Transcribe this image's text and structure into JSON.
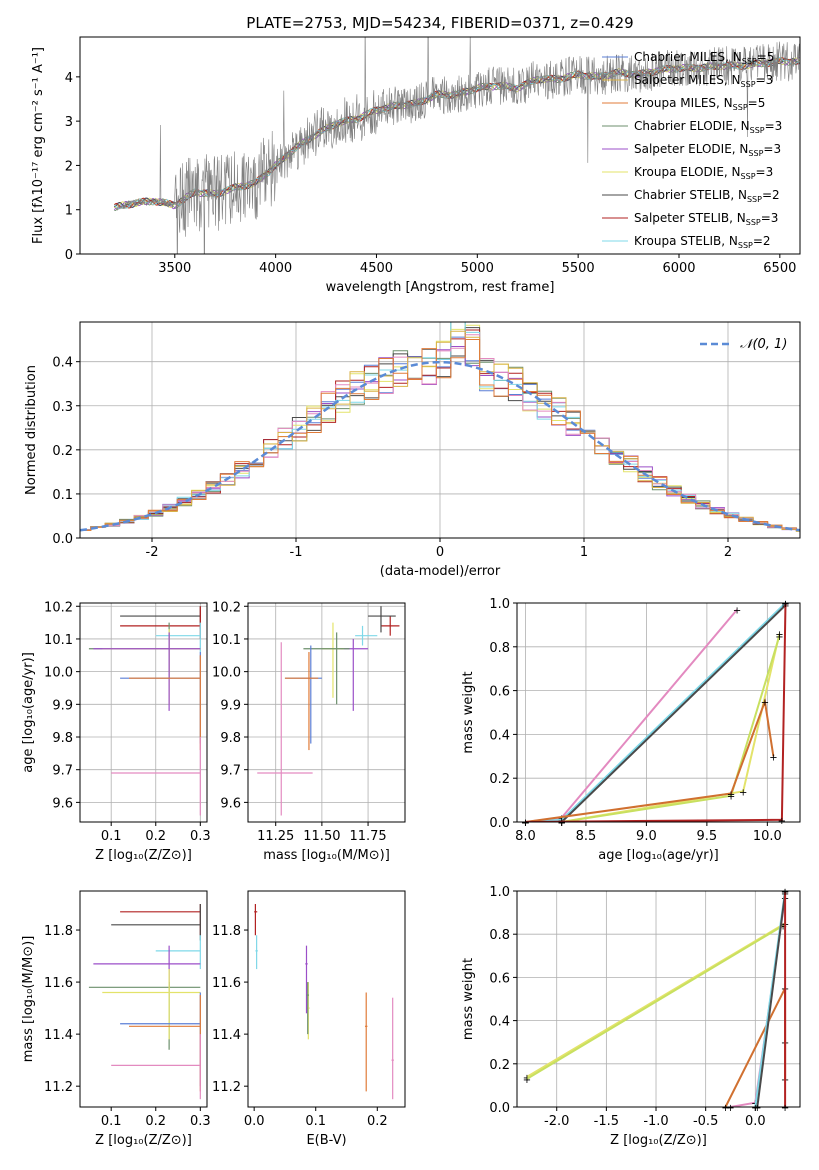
{
  "figure_title": "PLATE=2753, MJD=54234, FIBERID=0371, z=0.429",
  "colors": {
    "c0": "#5b7fd6",
    "c1": "#d9b247",
    "c2": "#e07b39",
    "c3": "#6c8f6c",
    "c4": "#9b4fc8",
    "c5": "#e3e36a",
    "c6": "#4a4a4a",
    "c7": "#b22222",
    "c8": "#7fd8e8",
    "c9": "#e38ac0",
    "c10": "#c8e060",
    "c11": "#d07030"
  },
  "chart_data": [
    {
      "id": "spectrum",
      "type": "line",
      "xlabel": "wavelength [Angstrom, rest frame]",
      "ylabel": "Flux [fλ10⁻¹⁷ erg cm⁻² s⁻¹ A⁻¹]",
      "xlim": [
        3030,
        6600
      ],
      "ylim": [
        0,
        4.9
      ],
      "xticks": [
        3500,
        4000,
        4500,
        5000,
        5500,
        6000,
        6500
      ],
      "yticks": [
        0,
        1,
        2,
        3,
        4
      ],
      "grid": false,
      "legend": [
        {
          "label": "Chabrier MILES, N_SSP=5",
          "color": "#5b7fd6"
        },
        {
          "label": "Salpeter MILES, N_SSP=3",
          "color": "#d9b247"
        },
        {
          "label": "Kroupa MILES, N_SSP=5",
          "color": "#e07b39"
        },
        {
          "label": "Chabrier ELODIE, N_SSP=3",
          "color": "#6c8f6c"
        },
        {
          "label": "Salpeter ELODIE, N_SSP=3",
          "color": "#9b4fc8"
        },
        {
          "label": "Kroupa ELODIE, N_SSP=3",
          "color": "#e3e36a"
        },
        {
          "label": "Chabrier STELIB, N_SSP=2",
          "color": "#4a4a4a"
        },
        {
          "label": "Salpeter STELIB, N_SSP=3",
          "color": "#b22222"
        },
        {
          "label": "Kroupa STELIB, N_SSP=2",
          "color": "#7fd8e8"
        }
      ],
      "continuum": {
        "x": [
          3200,
          3300,
          3400,
          3500,
          3600,
          3700,
          3800,
          3900,
          4000,
          4100,
          4200,
          4300,
          4400,
          4500,
          4600,
          4700,
          4800,
          4900,
          5000,
          5100,
          5200,
          5300,
          5400,
          5500,
          5600,
          5700,
          5800,
          5900,
          6000,
          6100,
          6200,
          6300,
          6400,
          6500,
          6600
        ],
        "y": [
          1.05,
          1.15,
          1.2,
          1.1,
          1.4,
          1.35,
          1.5,
          1.6,
          2.0,
          2.4,
          2.7,
          2.95,
          3.05,
          3.25,
          3.35,
          3.4,
          3.6,
          3.6,
          3.75,
          3.8,
          3.75,
          3.95,
          3.95,
          4.05,
          4.0,
          4.1,
          4.05,
          4.15,
          4.2,
          4.2,
          4.25,
          4.25,
          4.3,
          4.35,
          4.35
        ]
      }
    },
    {
      "id": "residuals",
      "type": "histogram",
      "xlabel": "(data-model)/error",
      "ylabel": "Normed distribution",
      "xlim": [
        -2.5,
        2.5
      ],
      "ylim": [
        0,
        0.49
      ],
      "xticks": [
        -2,
        -1,
        0,
        1,
        2
      ],
      "yticks": [
        0.0,
        0.1,
        0.2,
        0.3,
        0.4
      ],
      "grid": true,
      "legend": [
        {
          "label": "𝒩(0, 1)",
          "color": "#5b7fd6"
        }
      ],
      "legend_position": "top-right"
    },
    {
      "id": "age_vs_Z",
      "type": "scatter",
      "xlabel": "Z [log₁₀(Z/Z⊙)]",
      "ylabel": "age  [log₁₀(age/yr)]",
      "xlim": [
        0.03,
        0.315
      ],
      "ylim": [
        9.54,
        10.21
      ],
      "xticks": [
        0.1,
        0.2,
        0.3
      ],
      "yticks": [
        9.6,
        9.7,
        9.8,
        9.9,
        10.0,
        10.1,
        10.2
      ],
      "grid": true
    },
    {
      "id": "age_vs_mass",
      "type": "scatter",
      "xlabel": "mass [log₁₀(M/M⊙)]",
      "xlim": [
        11.1,
        11.95
      ],
      "ylim": [
        9.54,
        10.21
      ],
      "xticks": [
        11.25,
        11.5,
        11.75
      ],
      "yticks": [
        9.6,
        9.7,
        9.8,
        9.9,
        10.0,
        10.1,
        10.2
      ],
      "grid": true
    },
    {
      "id": "weight_vs_age",
      "type": "line",
      "xlabel": "age  [log₁₀(age/yr)]",
      "ylabel": "mass weight",
      "xlim": [
        7.93,
        10.27
      ],
      "ylim": [
        0,
        1.0
      ],
      "xticks": [
        8.0,
        8.5,
        9.0,
        9.5,
        10.0
      ],
      "yticks": [
        0.0,
        0.2,
        0.4,
        0.6,
        0.8,
        1.0
      ],
      "grid": true
    },
    {
      "id": "mass_vs_Z",
      "type": "scatter",
      "xlabel": "Z [log₁₀(Z/Z⊙)]",
      "ylabel": "mass [log₁₀(M/M⊙)]",
      "xlim": [
        0.03,
        0.315
      ],
      "ylim": [
        11.12,
        11.95
      ],
      "xticks": [
        0.1,
        0.2,
        0.3
      ],
      "yticks": [
        11.2,
        11.4,
        11.6,
        11.8
      ],
      "grid": false
    },
    {
      "id": "mass_vs_ebv",
      "type": "scatter",
      "xlabel": "E(B-V)",
      "xlim": [
        -0.01,
        0.245
      ],
      "ylim": [
        11.12,
        11.95
      ],
      "xticks": [
        0.0,
        0.1,
        0.2
      ],
      "yticks": [
        11.2,
        11.4,
        11.6,
        11.8
      ],
      "grid": false
    },
    {
      "id": "weight_vs_Z",
      "type": "line",
      "xlabel": "Z [log₁₀(Z/Z⊙)]",
      "ylabel": "mass weight",
      "xlim": [
        -2.4,
        0.45
      ],
      "ylim": [
        0,
        1.0
      ],
      "xticks": [
        -2.0,
        -1.5,
        -1.0,
        -0.5,
        0.0
      ],
      "yticks": [
        0.0,
        0.2,
        0.4,
        0.6,
        0.8,
        1.0
      ],
      "grid": true
    }
  ]
}
